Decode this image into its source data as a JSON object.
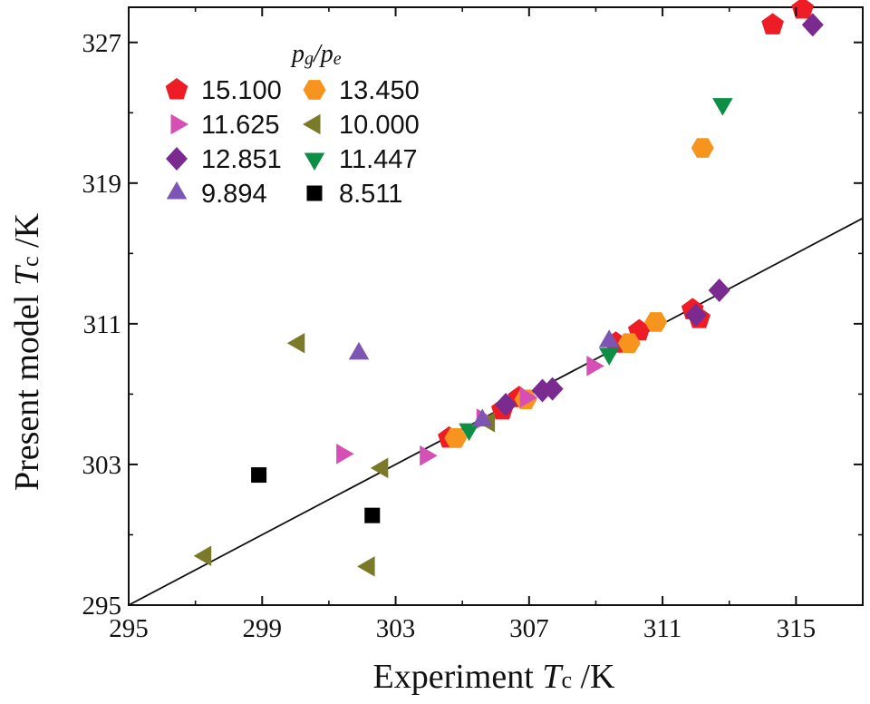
{
  "chart_data": {
    "type": "scatter",
    "xlabel": "Experiment Tc /K",
    "ylabel": "Present model Tc /K",
    "xlabel_parts": {
      "pre": "Experiment ",
      "sym": "T",
      "sub": "c",
      "post": " /K"
    },
    "ylabel_parts": {
      "pre": "Present model ",
      "sym": "T",
      "sub": "c",
      "post": " /K"
    },
    "xlim": [
      295,
      317
    ],
    "ylim": [
      295,
      329
    ],
    "xticks": [
      295,
      299,
      303,
      307,
      311,
      315
    ],
    "yticks": [
      295,
      303,
      311,
      319,
      327
    ],
    "reference_line": {
      "label": "y = x",
      "from": [
        295,
        295
      ],
      "to": [
        317,
        317
      ]
    },
    "legend": {
      "title": "pg/pe",
      "title_parts": {
        "a": "p",
        "a_sub": "g",
        "sep": "/",
        "b": "p",
        "b_sub": "e"
      },
      "position": "top-left"
    },
    "series": [
      {
        "name": "15.100",
        "marker": "pentagon",
        "color": "#ee1c24",
        "x": [
          304.6,
          306.2,
          306.7,
          309.6,
          310.3,
          311.9,
          312.1,
          314.3,
          315.2
        ],
        "y": [
          304.5,
          306.1,
          306.8,
          309.9,
          310.6,
          311.8,
          311.3,
          328.0,
          328.9
        ]
      },
      {
        "name": "13.450",
        "marker": "hexagon",
        "color": "#f7941d",
        "x": [
          304.8,
          306.9,
          310.0,
          310.8,
          312.2
        ],
        "y": [
          304.5,
          306.7,
          309.9,
          311.1,
          321.0
        ]
      },
      {
        "name": "11.625",
        "marker": "triangle-right",
        "color": "#d64fb5",
        "x": [
          301.4,
          303.9,
          305.6,
          306.9,
          308.9
        ],
        "y": [
          303.6,
          303.5,
          305.6,
          306.8,
          308.6
        ]
      },
      {
        "name": "10.000",
        "marker": "triangle-left",
        "color": "#7a7a28",
        "x": [
          297.3,
          300.1,
          302.2,
          302.6,
          305.8
        ],
        "y": [
          297.8,
          309.9,
          297.2,
          302.8,
          305.4
        ]
      },
      {
        "name": "12.851",
        "marker": "diamond",
        "color": "#7b2a8f",
        "x": [
          306.3,
          307.4,
          307.7,
          312.0,
          312.7,
          315.5
        ],
        "y": [
          306.4,
          307.2,
          307.3,
          311.5,
          312.9,
          328.0
        ]
      },
      {
        "name": "11.447",
        "marker": "triangle-down",
        "color": "#0c8f45",
        "x": [
          305.2,
          309.4,
          312.8
        ],
        "y": [
          305.0,
          309.3,
          323.5
        ]
      },
      {
        "name": "9.894",
        "marker": "triangle-up",
        "color": "#7d55b3",
        "x": [
          301.9,
          305.6,
          309.4
        ],
        "y": [
          309.3,
          305.5,
          310.0
        ]
      },
      {
        "name": "8.511",
        "marker": "square",
        "color": "#000000",
        "x": [
          298.9,
          302.3
        ],
        "y": [
          302.4,
          300.1
        ]
      }
    ]
  }
}
